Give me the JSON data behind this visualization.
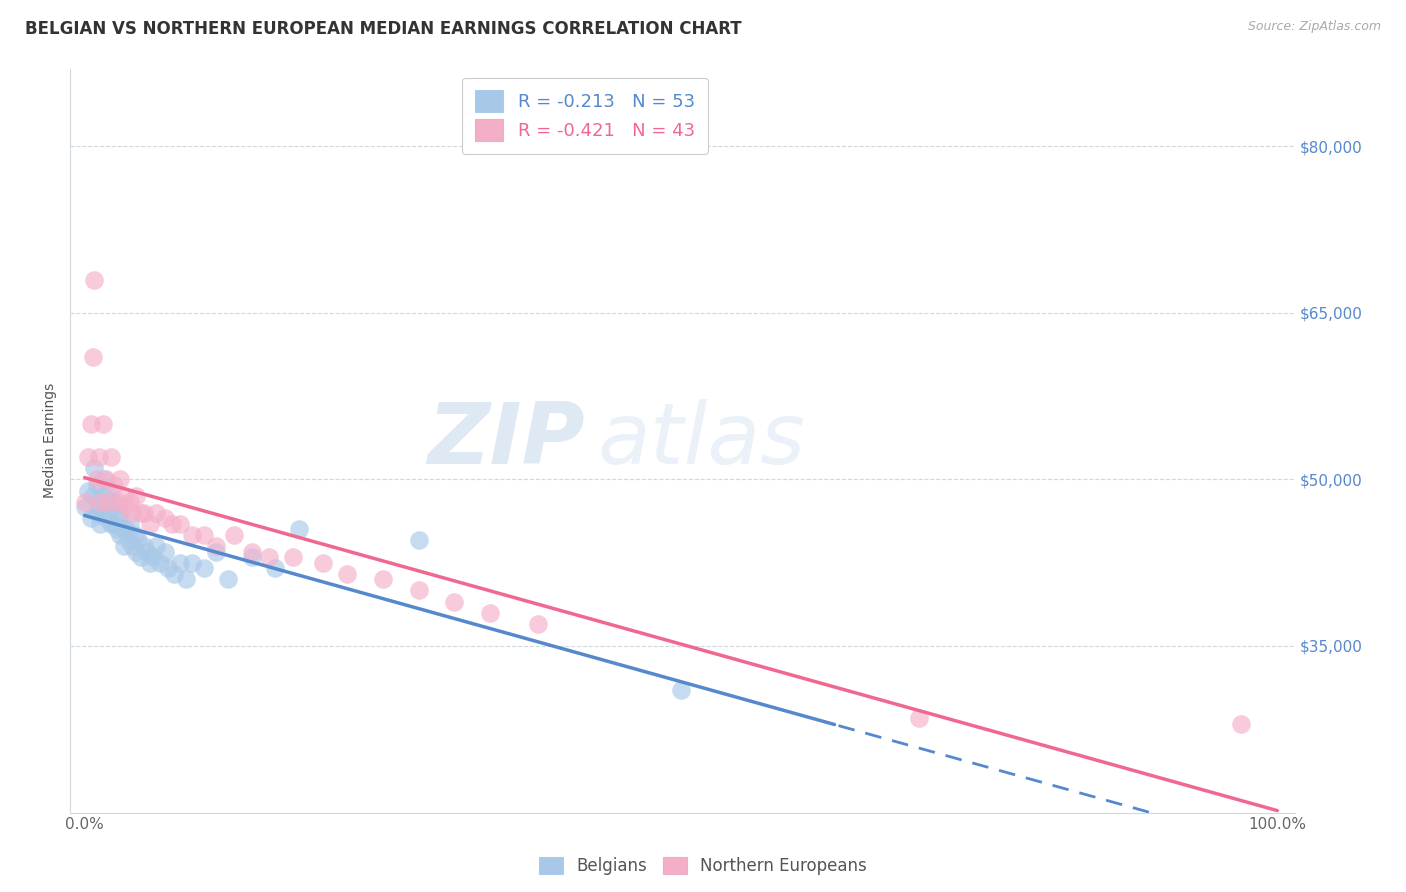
{
  "title": "BELGIAN VS NORTHERN EUROPEAN MEDIAN EARNINGS CORRELATION CHART",
  "source_text": "Source: ZipAtlas.com",
  "ylabel": "Median Earnings",
  "blue_r": -0.213,
  "blue_n": 53,
  "pink_r": -0.421,
  "pink_n": 43,
  "legend_label_blue": "Belgians",
  "legend_label_pink": "Northern Europeans",
  "watermark_zip": "ZIP",
  "watermark_atlas": "atlas",
  "title_fontsize": 12,
  "blue_color": "#a8c8e8",
  "pink_color": "#f4afc8",
  "blue_line_color": "#5588cc",
  "pink_line_color": "#f06890",
  "right_tick_color": "#5588cc",
  "ylim": [
    20000,
    87000
  ],
  "xlim": [
    -0.012,
    1.015
  ],
  "y_ticks": [
    35000,
    50000,
    65000,
    80000
  ],
  "y_tick_labels": [
    "$35,000",
    "$50,000",
    "$65,000",
    "$80,000"
  ],
  "blue_scatter_x": [
    0.0,
    0.003,
    0.005,
    0.007,
    0.008,
    0.01,
    0.01,
    0.012,
    0.013,
    0.015,
    0.015,
    0.016,
    0.018,
    0.02,
    0.02,
    0.022,
    0.023,
    0.025,
    0.025,
    0.027,
    0.028,
    0.03,
    0.03,
    0.032,
    0.033,
    0.035,
    0.037,
    0.038,
    0.04,
    0.042,
    0.043,
    0.045,
    0.047,
    0.05,
    0.052,
    0.055,
    0.057,
    0.06,
    0.063,
    0.067,
    0.07,
    0.075,
    0.08,
    0.085,
    0.09,
    0.1,
    0.11,
    0.12,
    0.14,
    0.16,
    0.18,
    0.28,
    0.5
  ],
  "blue_scatter_y": [
    47500,
    49000,
    46500,
    48500,
    51000,
    47000,
    49500,
    47500,
    46000,
    47000,
    48500,
    50000,
    46500,
    47500,
    49000,
    46000,
    47500,
    46000,
    48000,
    45500,
    46500,
    45000,
    47000,
    45500,
    44000,
    45500,
    44500,
    46000,
    44000,
    45000,
    43500,
    44500,
    43000,
    44000,
    43500,
    42500,
    43000,
    44000,
    42500,
    43500,
    42000,
    41500,
    42500,
    41000,
    42500,
    42000,
    43500,
    41000,
    43000,
    42000,
    45500,
    44500,
    31000
  ],
  "pink_scatter_x": [
    0.0,
    0.003,
    0.005,
    0.007,
    0.008,
    0.01,
    0.012,
    0.013,
    0.015,
    0.018,
    0.02,
    0.022,
    0.025,
    0.028,
    0.03,
    0.033,
    0.035,
    0.038,
    0.04,
    0.043,
    0.047,
    0.05,
    0.055,
    0.06,
    0.067,
    0.073,
    0.08,
    0.09,
    0.1,
    0.11,
    0.125,
    0.14,
    0.155,
    0.175,
    0.2,
    0.22,
    0.25,
    0.28,
    0.31,
    0.34,
    0.38,
    0.7,
    0.97
  ],
  "pink_scatter_y": [
    48000,
    52000,
    55000,
    61000,
    68000,
    50000,
    52000,
    48000,
    55000,
    50000,
    48000,
    52000,
    49500,
    48000,
    50000,
    48500,
    47500,
    48000,
    47000,
    48500,
    47000,
    47000,
    46000,
    47000,
    46500,
    46000,
    46000,
    45000,
    45000,
    44000,
    45000,
    43500,
    43000,
    43000,
    42500,
    41500,
    41000,
    40000,
    39000,
    38000,
    37000,
    28500,
    28000
  ]
}
